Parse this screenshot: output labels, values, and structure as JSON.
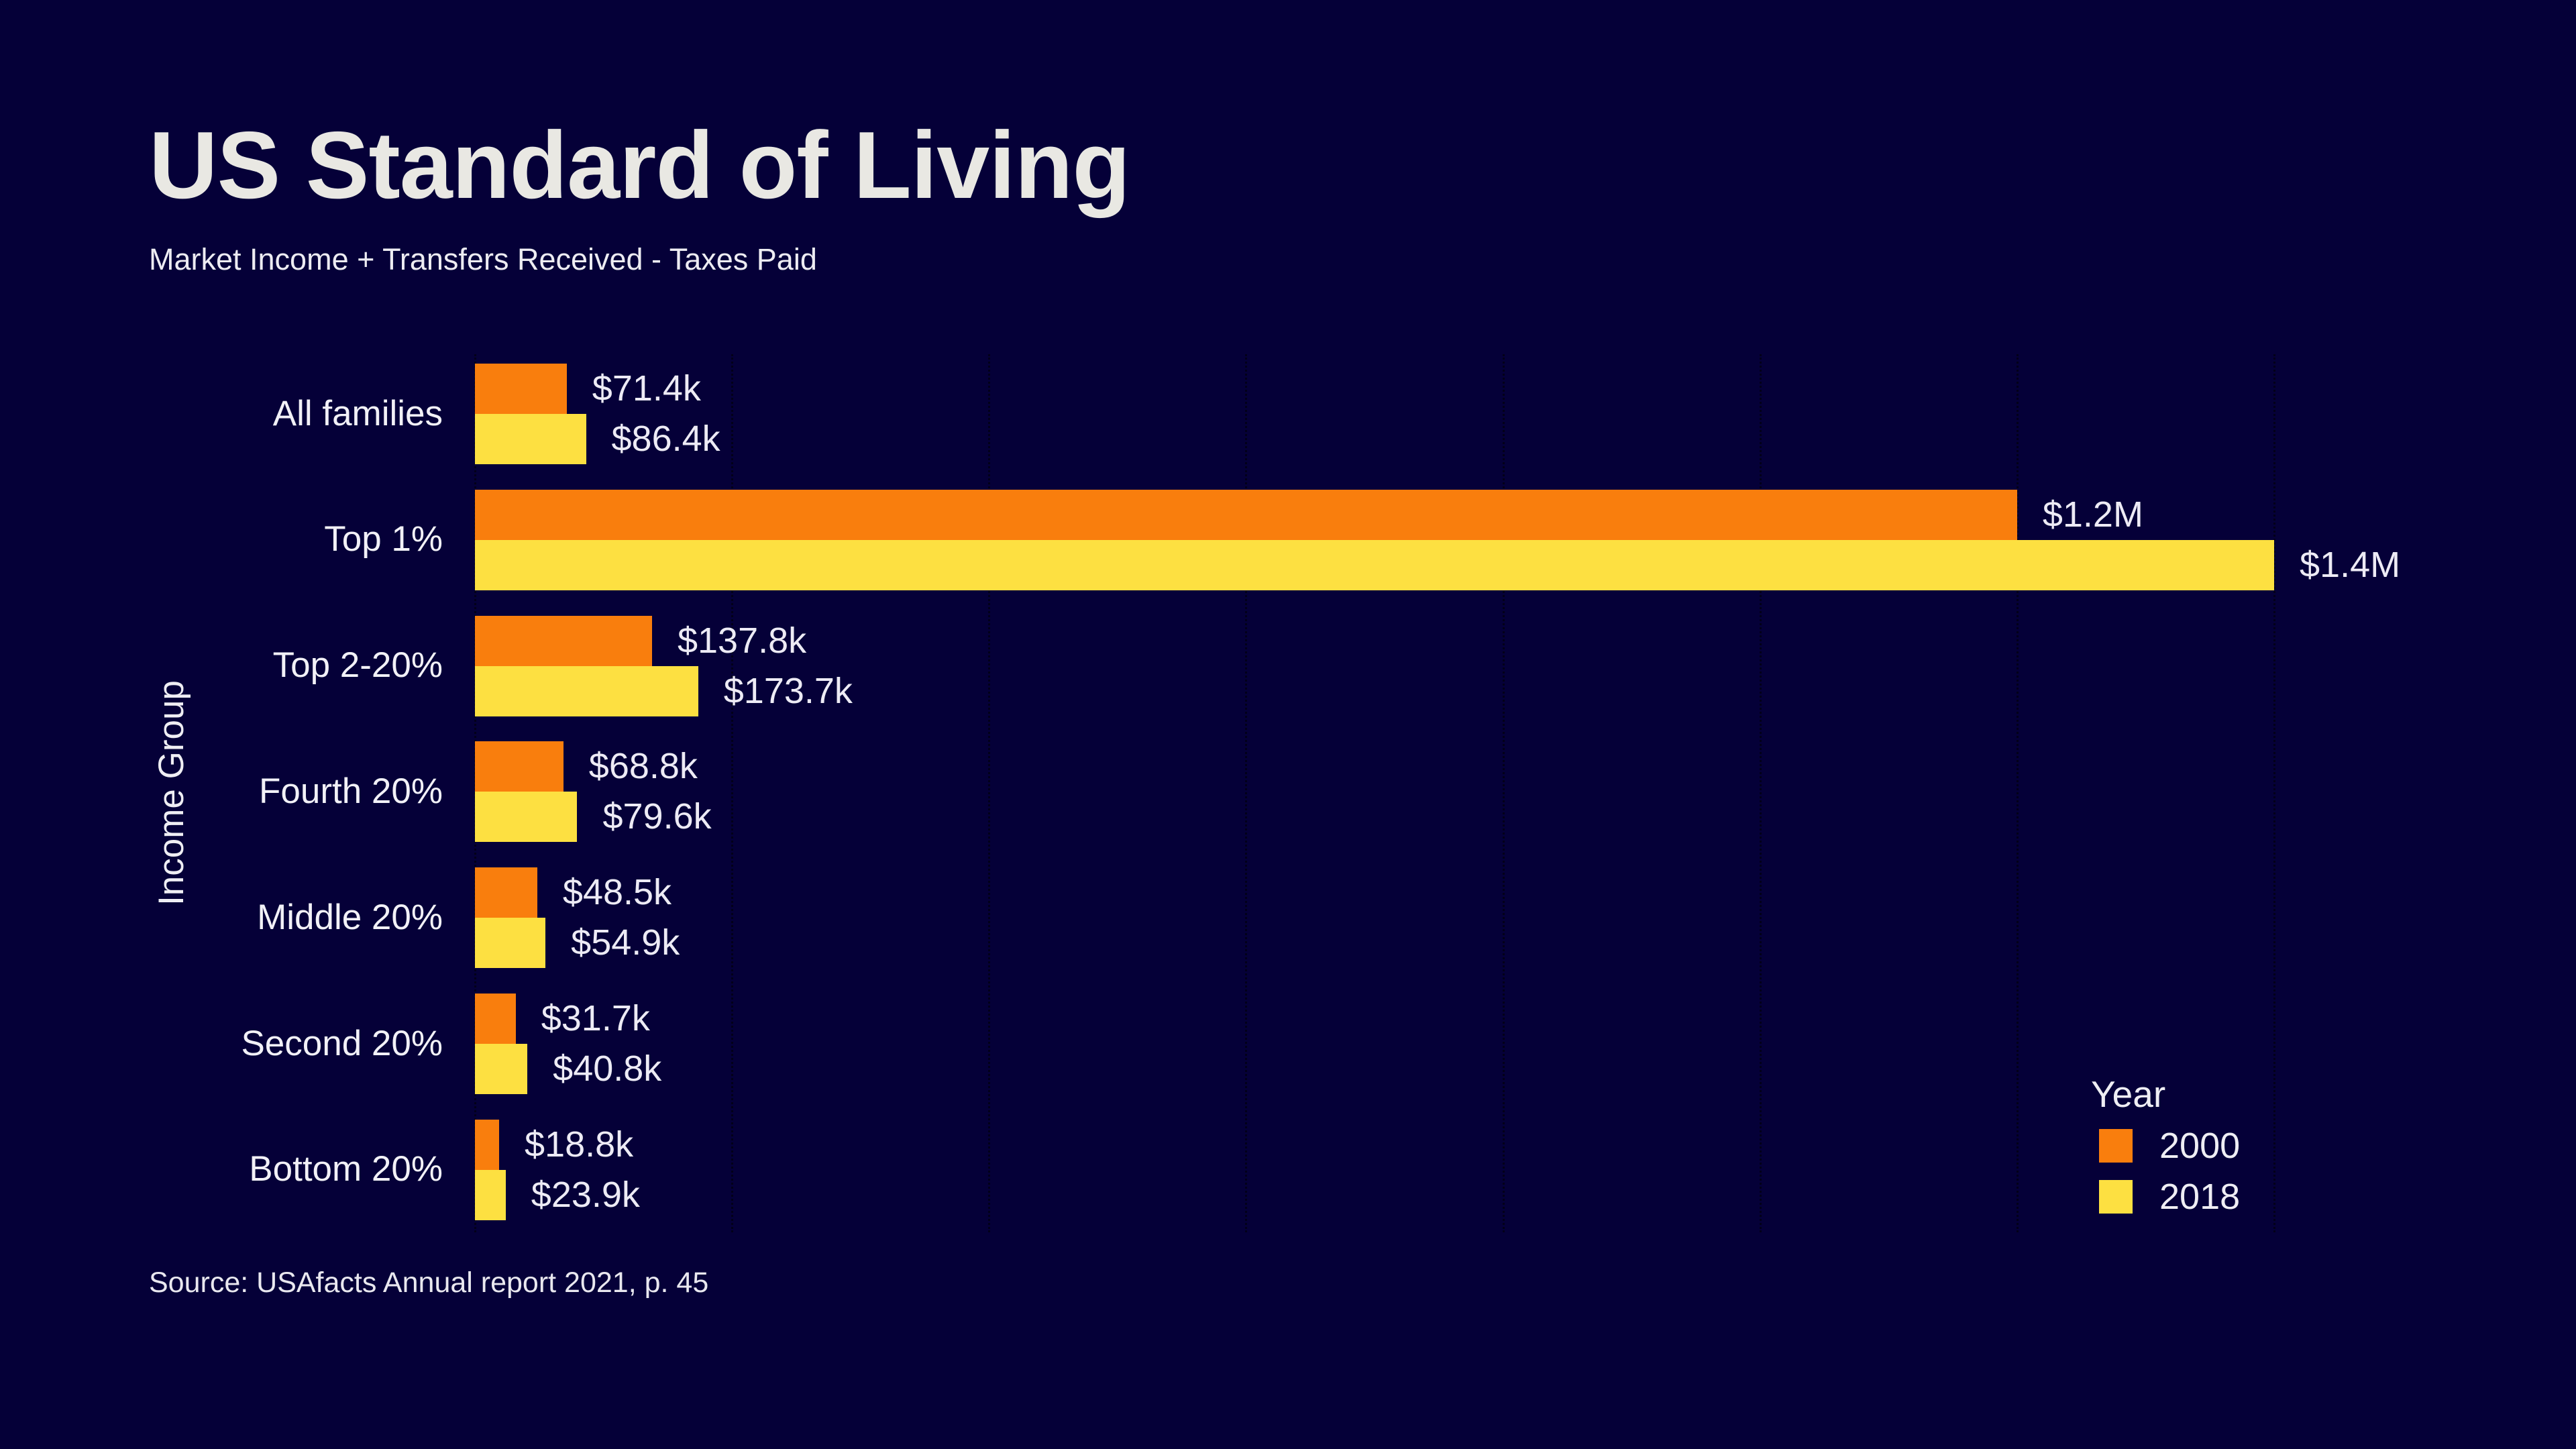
{
  "title": "US Standard of Living",
  "subtitle": "Market Income + Transfers Received - Taxes Paid",
  "source": "Source: USAfacts Annual report 2021, p. 45",
  "y_axis_label": "Income Group",
  "legend": {
    "title": "Year",
    "entries": [
      {
        "label": "2000",
        "color": "#F97E0D"
      },
      {
        "label": "2018",
        "color": "#FDE041"
      }
    ]
  },
  "colors": {
    "background": "#050038",
    "bar_2000": "#F97E0D",
    "bar_2018": "#FDE041",
    "text": "#EFEEF4"
  },
  "chart_data": {
    "type": "bar",
    "orientation": "horizontal",
    "title": "US Standard of Living",
    "subtitle": "Market Income + Transfers Received - Taxes Paid",
    "xlabel": "",
    "ylabel": "Income Group",
    "categories": [
      "All families",
      "Top 1%",
      "Top 2-20%",
      "Fourth 20%",
      "Middle 20%",
      "Second 20%",
      "Bottom 20%"
    ],
    "series": [
      {
        "name": "2000",
        "color": "#F97E0D",
        "values_usd_thousands": [
          71.4,
          1200,
          137.8,
          68.8,
          48.5,
          31.7,
          18.8
        ],
        "labels": [
          "$71.4k",
          "$1.2M",
          "$137.8k",
          "$68.8k",
          "$48.5k",
          "$31.7k",
          "$18.8k"
        ]
      },
      {
        "name": "2018",
        "color": "#FDE041",
        "values_usd_thousands": [
          86.4,
          1400,
          173.7,
          79.6,
          54.9,
          40.8,
          23.9
        ],
        "labels": [
          "$86.4k",
          "$1.4M",
          "$173.7k",
          "$79.6k",
          "$54.9k",
          "$40.8k",
          "$23.9k"
        ]
      }
    ],
    "xlim_usd_thousands": [
      0,
      1400
    ],
    "grid_step_usd_thousands": 200,
    "grid_style": "vertical dotted",
    "legend_position": "bottom-right",
    "source": "Source: USAfacts Annual report 2021, p. 45"
  }
}
